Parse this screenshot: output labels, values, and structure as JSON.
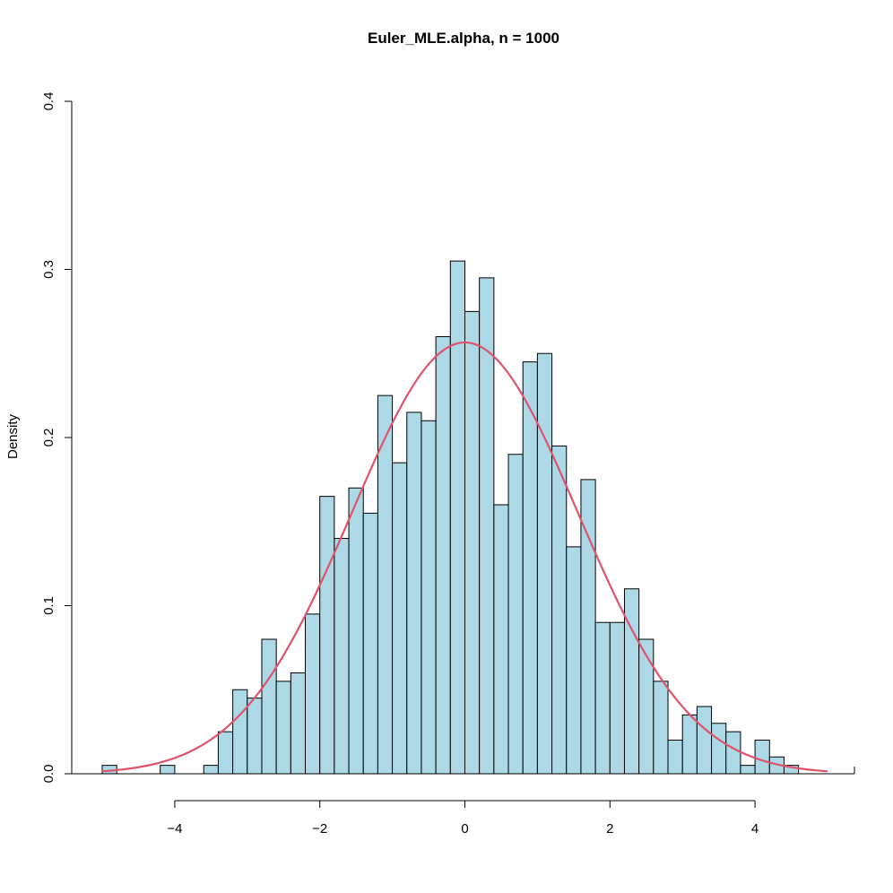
{
  "chart_data": {
    "type": "bar",
    "title": "Euler_MLE.alpha, n = 1000",
    "xlabel": "",
    "ylabel": "Density",
    "xlim": [
      -5.0,
      5.0
    ],
    "ylim": [
      0,
      0.4
    ],
    "x_ticks": [
      -4,
      -2,
      0,
      2,
      4
    ],
    "x_tick_labels": [
      "−4",
      "−2",
      "0",
      "2",
      "4"
    ],
    "y_ticks": [
      0.0,
      0.1,
      0.2,
      0.3,
      0.4
    ],
    "y_tick_labels": [
      "0.0",
      "0.1",
      "0.2",
      "0.3",
      "0.4"
    ],
    "bin_width": 0.2,
    "bins": [
      {
        "x0": -5.0,
        "density": 0.005
      },
      {
        "x0": -4.8,
        "density": 0.0
      },
      {
        "x0": -4.6,
        "density": 0.0
      },
      {
        "x0": -4.4,
        "density": 0.0
      },
      {
        "x0": -4.2,
        "density": 0.005
      },
      {
        "x0": -4.0,
        "density": 0.0
      },
      {
        "x0": -3.8,
        "density": 0.0
      },
      {
        "x0": -3.6,
        "density": 0.005
      },
      {
        "x0": -3.4,
        "density": 0.025
      },
      {
        "x0": -3.2,
        "density": 0.05
      },
      {
        "x0": -3.0,
        "density": 0.045
      },
      {
        "x0": -2.8,
        "density": 0.08
      },
      {
        "x0": -2.6,
        "density": 0.055
      },
      {
        "x0": -2.4,
        "density": 0.06
      },
      {
        "x0": -2.2,
        "density": 0.095
      },
      {
        "x0": -2.0,
        "density": 0.165
      },
      {
        "x0": -1.8,
        "density": 0.14
      },
      {
        "x0": -1.6,
        "density": 0.17
      },
      {
        "x0": -1.4,
        "density": 0.155
      },
      {
        "x0": -1.2,
        "density": 0.225
      },
      {
        "x0": -1.0,
        "density": 0.185
      },
      {
        "x0": -0.8,
        "density": 0.215
      },
      {
        "x0": -0.6,
        "density": 0.21
      },
      {
        "x0": -0.4,
        "density": 0.26
      },
      {
        "x0": -0.2,
        "density": 0.305
      },
      {
        "x0": 0.0,
        "density": 0.275
      },
      {
        "x0": 0.2,
        "density": 0.295
      },
      {
        "x0": 0.4,
        "density": 0.16
      },
      {
        "x0": 0.6,
        "density": 0.19
      },
      {
        "x0": 0.8,
        "density": 0.245
      },
      {
        "x0": 1.0,
        "density": 0.25
      },
      {
        "x0": 1.2,
        "density": 0.195
      },
      {
        "x0": 1.4,
        "density": 0.135
      },
      {
        "x0": 1.6,
        "density": 0.175
      },
      {
        "x0": 1.8,
        "density": 0.09
      },
      {
        "x0": 2.0,
        "density": 0.09
      },
      {
        "x0": 2.2,
        "density": 0.11
      },
      {
        "x0": 2.4,
        "density": 0.08
      },
      {
        "x0": 2.6,
        "density": 0.055
      },
      {
        "x0": 2.8,
        "density": 0.02
      },
      {
        "x0": 3.0,
        "density": 0.035
      },
      {
        "x0": 3.2,
        "density": 0.04
      },
      {
        "x0": 3.4,
        "density": 0.03
      },
      {
        "x0": 3.6,
        "density": 0.025
      },
      {
        "x0": 3.8,
        "density": 0.005
      },
      {
        "x0": 4.0,
        "density": 0.02
      },
      {
        "x0": 4.2,
        "density": 0.01
      },
      {
        "x0": 4.4,
        "density": 0.005
      }
    ],
    "overlay_curve": {
      "type": "normal_density",
      "mean": 0.0,
      "sd": 1.555,
      "x_range": [
        -5.0,
        5.0
      ]
    },
    "colors": {
      "bar_fill": "#add8e6",
      "bar_stroke": "#000000",
      "curve": "#df536b"
    },
    "grid": false,
    "legend": "none"
  }
}
